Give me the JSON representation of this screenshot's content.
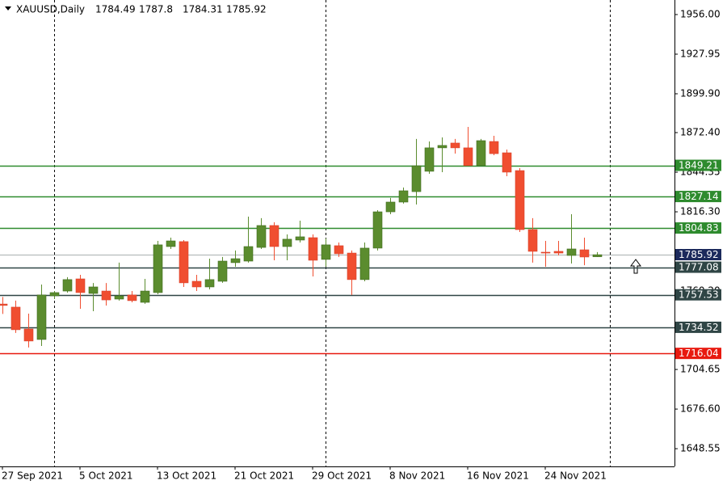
{
  "chart_data": {
    "type": "candlestick",
    "symbol": "XAUUSD,Daily",
    "categories": [
      "27 Sep 2021",
      null,
      null,
      null,
      null,
      null,
      "5 Oct 2021",
      null,
      null,
      null,
      null,
      null,
      "13 Oct 2021",
      null,
      null,
      null,
      null,
      null,
      "21 Oct 2021",
      null,
      null,
      null,
      null,
      null,
      "29 Oct 2021",
      null,
      null,
      null,
      null,
      null,
      "8 Nov 2021",
      null,
      null,
      null,
      null,
      null,
      "16 Nov 2021",
      null,
      null,
      null,
      null,
      null,
      "24 Nov 2021",
      null,
      null,
      null,
      null
    ],
    "open": [
      1751,
      1748.8,
      1733.3,
      1725.9,
      1756.8,
      1760.2,
      1768.8,
      1758.5,
      1760.2,
      1754.5,
      1757.4,
      1752.2,
      1759.1,
      1791.7,
      1795.2,
      1767.1,
      1763.1,
      1767.1,
      1780.3,
      1781.4,
      1791.1,
      1806.6,
      1791.7,
      1796.3,
      1798.0,
      1782.6,
      1792.3,
      1787.1,
      1768.3,
      1790.6,
      1816.3,
      1823.2,
      1830.6,
      1845.0,
      1861.6,
      1865.0,
      1861.6,
      1849.0,
      1866.1,
      1858.1,
      1845.5,
      1803.7,
      1787.7,
      1788.3,
      1785.4,
      1789.4,
      1784.49
    ],
    "high": [
      1756,
      1753.4,
      1744.2,
      1764.8,
      1760.2,
      1770.0,
      1771.7,
      1765.9,
      1765.9,
      1780.3,
      1760.2,
      1768.8,
      1795.7,
      1798.0,
      1796.3,
      1771.7,
      1783.1,
      1784.3,
      1788.9,
      1812.9,
      1811.8,
      1808.9,
      1800.3,
      1810.0,
      1800.3,
      1797.4,
      1794.6,
      1788.9,
      1794.6,
      1817.5,
      1826.1,
      1833.5,
      1867.9,
      1866.1,
      1869.0,
      1867.9,
      1876.4,
      1867.9,
      1870.1,
      1860.4,
      1847.2,
      1811.8,
      1795.7,
      1795.7,
      1814.6,
      1798.0,
      1787.8
    ],
    "low": [
      1744,
      1730.5,
      1720.2,
      1721.3,
      1754.5,
      1759.1,
      1747.6,
      1745.9,
      1749.9,
      1753.4,
      1752.2,
      1751.1,
      1757.9,
      1790.0,
      1763.1,
      1760.2,
      1761.4,
      1766.0,
      1777.4,
      1780.3,
      1790.0,
      1782.0,
      1782.0,
      1794.6,
      1770.5,
      1777.4,
      1784.3,
      1757.4,
      1767.1,
      1788.9,
      1814.6,
      1822.1,
      1821.5,
      1843.2,
      1844.4,
      1857.5,
      1849.0,
      1849.0,
      1856.4,
      1841.5,
      1802.0,
      1780.3,
      1777.4,
      1785.4,
      1779.7,
      1778.5,
      1784.31
    ],
    "close": [
      1750,
      1732.8,
      1724.8,
      1757.4,
      1759.1,
      1768.3,
      1759.1,
      1763.1,
      1753.9,
      1756.8,
      1753.4,
      1760.2,
      1792.9,
      1795.7,
      1766.0,
      1763.1,
      1768.3,
      1781.4,
      1783.1,
      1791.7,
      1806.6,
      1791.7,
      1796.9,
      1798.6,
      1782.0,
      1792.9,
      1786.6,
      1768.3,
      1790.6,
      1816.3,
      1823.2,
      1831.2,
      1848.9,
      1861.6,
      1863.3,
      1861.6,
      1849.0,
      1866.7,
      1857.5,
      1844.4,
      1803.7,
      1788.3,
      1787.1,
      1787.1,
      1790.0,
      1784.3,
      1785.92
    ],
    "up_color": "#5b8c2e",
    "down_color": "#f04e30",
    "ylim": [
      1636,
      1966.3
    ],
    "yticks": [
      {
        "value": 1956,
        "label": "1956.00"
      },
      1927.95,
      {
        "value": 1899.9,
        "label": "1899.90"
      },
      {
        "value": 1872.4,
        "label": "1872.40"
      },
      1844.35,
      {
        "value": 1816.3,
        "label": "1816.30"
      },
      {
        "value": 1760.2,
        "label": "1760.20"
      },
      1704.65,
      {
        "value": 1676.6,
        "label": "1676.60"
      },
      1648.55
    ],
    "levels": [
      {
        "value": 1849.21,
        "color": "#2e8b2e"
      },
      {
        "value": 1827.14,
        "color": "#2e8b2e"
      },
      {
        "value": 1804.83,
        "color": "#2e8b2e"
      },
      {
        "value": 1777.08,
        "color": "#2f4545"
      },
      {
        "value": 1757.53,
        "color": "#2f4545"
      },
      {
        "value": 1734.52,
        "color": "#2f4545"
      },
      {
        "value": 1716.04,
        "color": "#e8190f"
      }
    ],
    "price_color": "#1c2a5c"
  }
}
